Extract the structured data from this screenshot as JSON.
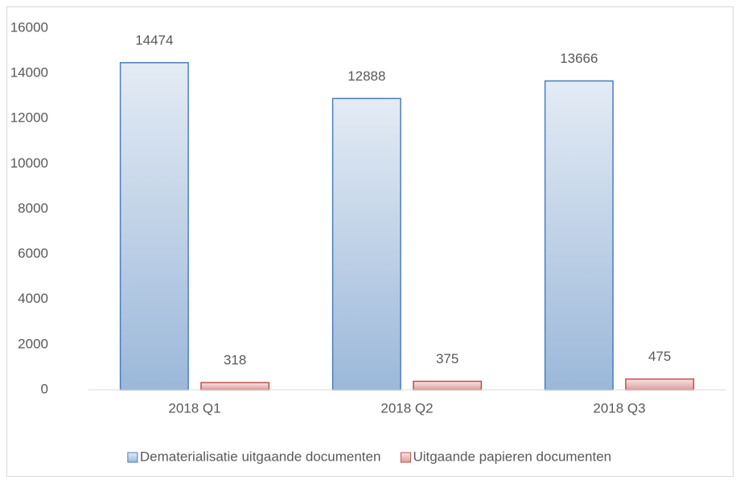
{
  "chart_data": {
    "type": "bar",
    "categories": [
      "2018 Q1",
      "2018 Q2",
      "2018 Q3"
    ],
    "series": [
      {
        "name": "Dematerialisatie uitgaande documenten",
        "color": "#4a7ebb",
        "values": [
          14474,
          12888,
          13666
        ]
      },
      {
        "name": "Uitgaande papieren documenten",
        "color": "#c0504d",
        "values": [
          318,
          375,
          475
        ]
      }
    ],
    "ylim": [
      0,
      16000
    ],
    "yticks": [
      0,
      2000,
      4000,
      6000,
      8000,
      10000,
      12000,
      14000,
      16000
    ],
    "grid": false,
    "legend": "bottom"
  }
}
